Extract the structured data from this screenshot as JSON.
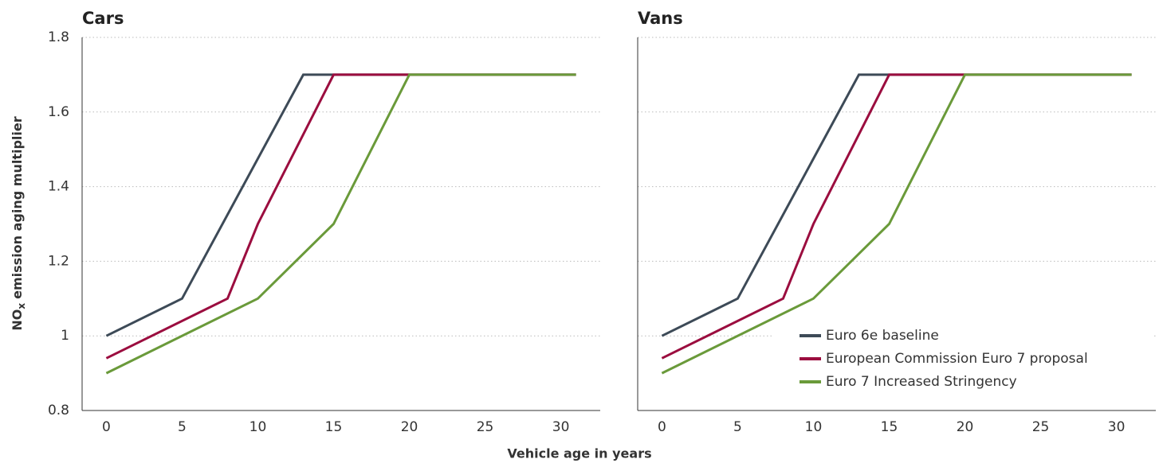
{
  "shared": {
    "xlabel": "Vehicle age in years",
    "ylabel": {
      "main": "NO",
      "sub": "x",
      "rest": "emission aging multiplier"
    }
  },
  "chart_data": [
    {
      "type": "line",
      "title": "Cars",
      "xlim": [
        -1.6,
        32.6
      ],
      "xticks": [
        0,
        5,
        10,
        15,
        20,
        25,
        30
      ],
      "ylim": [
        0.8,
        1.8
      ],
      "yticks": [
        0.8,
        1,
        1.2,
        1.4,
        1.6,
        1.8
      ],
      "ytick_labels": true,
      "grid": true,
      "series": [
        {
          "name": "Euro 6e baseline",
          "color": "#3d4a57",
          "x": [
            0,
            5,
            13,
            31
          ],
          "values": [
            1.0,
            1.1,
            1.7,
            1.7
          ]
        },
        {
          "name": "European Commission Euro 7 proposal",
          "color": "#9b0d3f",
          "x": [
            0,
            8,
            10,
            15,
            31
          ],
          "values": [
            0.94,
            1.1,
            1.3,
            1.7,
            1.7
          ]
        },
        {
          "name": "Euro 7 Increased Stringency",
          "color": "#6a9a3a",
          "x": [
            0,
            10,
            15,
            20,
            31
          ],
          "values": [
            0.9,
            1.1,
            1.3,
            1.7,
            1.7
          ]
        }
      ]
    },
    {
      "type": "line",
      "title": "Vans",
      "xlim": [
        -1.6,
        32.6
      ],
      "xticks": [
        0,
        5,
        10,
        15,
        20,
        25,
        30
      ],
      "ylim": [
        0.8,
        1.8
      ],
      "yticks": [
        0.8,
        1,
        1.2,
        1.4,
        1.6,
        1.8
      ],
      "ytick_labels": false,
      "grid": true,
      "legend": "lower right",
      "series": [
        {
          "name": "Euro 6e baseline",
          "color": "#3d4a57",
          "x": [
            0,
            5,
            13,
            31
          ],
          "values": [
            1.0,
            1.1,
            1.7,
            1.7
          ]
        },
        {
          "name": "European Commission Euro 7 proposal",
          "color": "#9b0d3f",
          "x": [
            0,
            8,
            10,
            15,
            31
          ],
          "values": [
            0.94,
            1.1,
            1.3,
            1.7,
            1.7
          ]
        },
        {
          "name": "Euro 7 Increased Stringency",
          "color": "#6a9a3a",
          "x": [
            0,
            10,
            15,
            20,
            31
          ],
          "values": [
            0.9,
            1.1,
            1.3,
            1.7,
            1.7
          ]
        }
      ]
    }
  ]
}
